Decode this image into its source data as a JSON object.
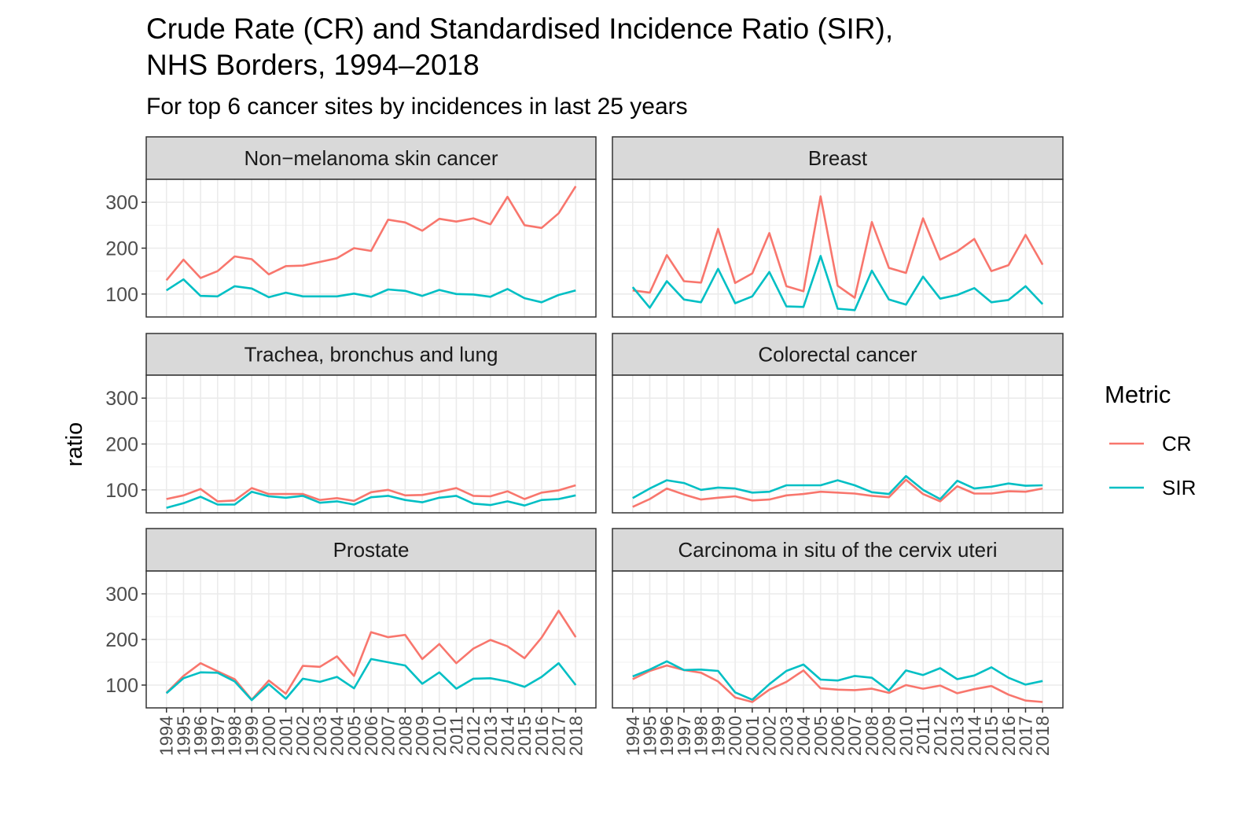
{
  "chart_data": {
    "type": "line",
    "title_lines": [
      "Crude Rate (CR) and Standardised Incidence Ratio (SIR),",
      "NHS Borders, 1994–2018"
    ],
    "subtitle": "For top 6 cancer sites by incidences in last 25 years",
    "ylabel": "ratio",
    "xlabel": "",
    "ylim": [
      50,
      350
    ],
    "y_ticks": [
      100,
      200,
      300
    ],
    "y_tick_labels": [
      "100",
      "200",
      "300"
    ],
    "grid": true,
    "legend": {
      "title": "Metric",
      "position": "right",
      "entries": [
        {
          "name": "CR",
          "color": "#F8766D"
        },
        {
          "name": "SIR",
          "color": "#00BFC4"
        }
      ]
    },
    "x": [
      "1994",
      "1995",
      "1996",
      "1997",
      "1998",
      "1999",
      "2000",
      "2001",
      "2002",
      "2003",
      "2004",
      "2005",
      "2006",
      "2007",
      "2008",
      "2009",
      "2010",
      "2011",
      "2012",
      "2013",
      "2014",
      "2015",
      "2016",
      "2017",
      "2018"
    ],
    "panels": [
      {
        "name": "Non−melanoma skin cancer",
        "series": [
          {
            "name": "CR",
            "values": [
              130,
              175,
              135,
              150,
              182,
              176,
              143,
              161,
              162,
              170,
              178,
              200,
              194,
              262,
              256,
              238,
              264,
              258,
              265,
              252,
              312,
              250,
              244,
              276,
              335
            ]
          },
          {
            "name": "SIR",
            "values": [
              108,
              132,
              96,
              95,
              117,
              112,
              93,
              103,
              95,
              95,
              95,
              101,
              94,
              110,
              107,
              96,
              109,
              100,
              99,
              94,
              111,
              91,
              82,
              98,
              108
            ]
          }
        ]
      },
      {
        "name": "Breast",
        "series": [
          {
            "name": "CR",
            "values": [
              108,
              103,
              185,
              128,
              125,
              242,
              124,
              145,
              233,
              117,
              106,
              313,
              118,
              92,
              257,
              157,
              146,
              265,
              175,
              193,
              220,
              150,
              163,
              229,
              164
            ]
          },
          {
            "name": "SIR",
            "values": [
              115,
              70,
              128,
              88,
              82,
              155,
              80,
              95,
              148,
              73,
              72,
              183,
              68,
              65,
              151,
              88,
              77,
              138,
              90,
              98,
              113,
              82,
              87,
              117,
              78
            ]
          }
        ]
      },
      {
        "name": "Trachea, bronchus and lung",
        "series": [
          {
            "name": "CR",
            "values": [
              80,
              88,
              102,
              75,
              77,
              104,
              91,
              91,
              91,
              78,
              82,
              76,
              95,
              100,
              88,
              89,
              96,
              104,
              87,
              86,
              97,
              80,
              94,
              99,
              110
            ]
          },
          {
            "name": "SIR",
            "values": [
              61,
              71,
              85,
              68,
              68,
              96,
              86,
              83,
              87,
              72,
              75,
              68,
              84,
              87,
              78,
              73,
              83,
              87,
              70,
              67,
              75,
              66,
              78,
              80,
              88
            ]
          }
        ]
      },
      {
        "name": "Colorectal cancer",
        "series": [
          {
            "name": "CR",
            "values": [
              63,
              80,
              103,
              90,
              79,
              83,
              86,
              77,
              79,
              88,
              91,
              96,
              94,
              92,
              87,
              84,
              122,
              91,
              75,
              108,
              92,
              92,
              97,
              96,
              103
            ]
          },
          {
            "name": "SIR",
            "values": [
              82,
              103,
              121,
              115,
              100,
              105,
              103,
              94,
              96,
              110,
              110,
              110,
              121,
              110,
              95,
              91,
              130,
              100,
              80,
              120,
              103,
              107,
              114,
              109,
              110
            ]
          }
        ]
      },
      {
        "name": "Prostate",
        "series": [
          {
            "name": "CR",
            "values": [
              83,
              120,
              148,
              130,
              113,
              68,
              110,
              81,
              142,
              140,
              163,
              120,
              216,
              205,
              210,
              157,
              190,
              148,
              180,
              199,
              185,
              159,
              204,
              263,
              205
            ]
          },
          {
            "name": "SIR",
            "values": [
              82,
              115,
              128,
              127,
              108,
              67,
              102,
              70,
              114,
              107,
              118,
              93,
              157,
              150,
              143,
              103,
              128,
              92,
              114,
              115,
              108,
              96,
              118,
              148,
              100
            ]
          }
        ]
      },
      {
        "name": "Carcinoma in situ of the cervix uteri",
        "series": [
          {
            "name": "CR",
            "values": [
              113,
              131,
              143,
              133,
              127,
              108,
              73,
              63,
              90,
              107,
              132,
              93,
              90,
              89,
              92,
              83,
              100,
              92,
              99,
              82,
              91,
              98,
              79,
              66,
              63
            ]
          },
          {
            "name": "SIR",
            "values": [
              119,
              134,
              152,
              133,
              134,
              131,
              84,
              68,
              102,
              131,
              145,
              112,
              110,
              120,
              116,
              88,
              132,
              122,
              137,
              113,
              121,
              139,
              116,
              101,
              109
            ]
          }
        ]
      }
    ]
  }
}
